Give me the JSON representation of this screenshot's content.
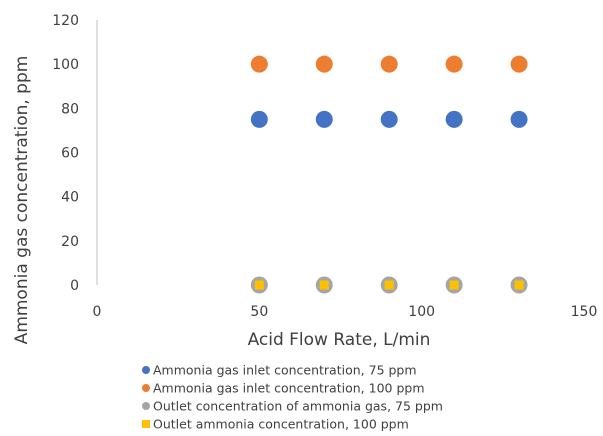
{
  "chart_data": {
    "type": "scatter",
    "title": "",
    "xlabel": "Acid Flow Rate, L/min",
    "ylabel": "Ammonia gas concentration, ppm",
    "xlim": [
      0,
      150
    ],
    "ylim": [
      0,
      120
    ],
    "xticks": [
      0,
      50,
      100,
      150
    ],
    "yticks": [
      0,
      20,
      40,
      60,
      80,
      100,
      120
    ],
    "grid": false,
    "legend_position": "bottom",
    "series": [
      {
        "name": "Ammonia gas inlet concentration, 75 ppm",
        "marker": "circle",
        "color": "#4472c4",
        "x": [
          50,
          70,
          90,
          110,
          130
        ],
        "y": [
          75,
          75,
          75,
          75,
          75
        ]
      },
      {
        "name": "Ammonia gas inlet concentration, 100 ppm",
        "marker": "circle",
        "color": "#ed7d31",
        "x": [
          50,
          70,
          90,
          110,
          130
        ],
        "y": [
          100,
          100,
          100,
          100,
          100
        ]
      },
      {
        "name": "Outlet concentration of ammonia gas, 75 ppm",
        "marker": "circle",
        "color": "#a5a5a5",
        "x": [
          50,
          70,
          90,
          110,
          130
        ],
        "y": [
          0,
          0,
          0,
          0,
          0
        ]
      },
      {
        "name": "Outlet ammonia concentration, 100 ppm",
        "marker": "square",
        "color": "#ffc000",
        "x": [
          50,
          70,
          90,
          110,
          130
        ],
        "y": [
          0,
          0,
          0,
          0,
          0
        ]
      }
    ]
  }
}
